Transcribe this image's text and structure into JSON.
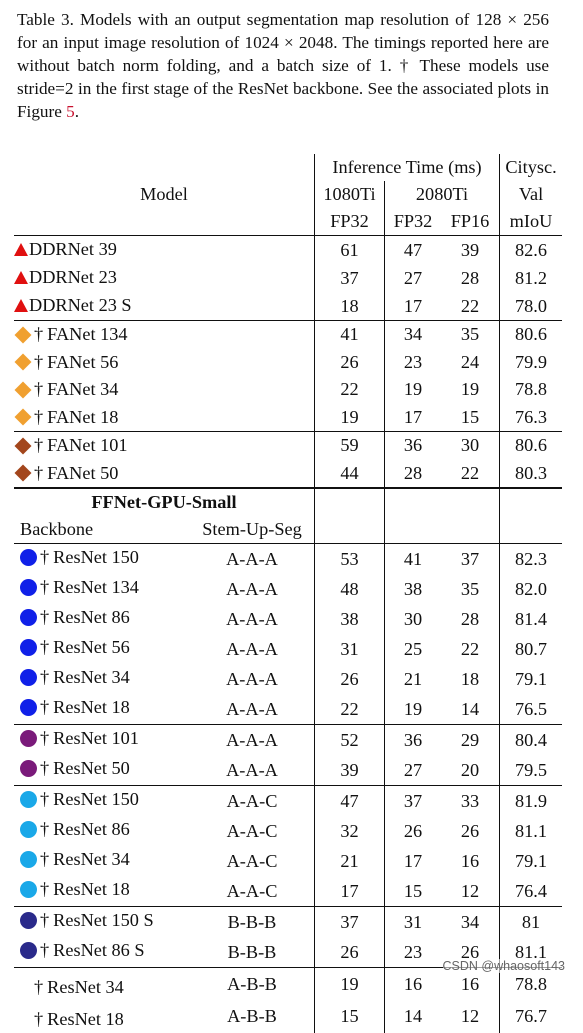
{
  "caption": {
    "text": "Table 3. Models with an output segmentation map resolution of 128 × 256 for an input image resolution of 1024 × 2048. The timings reported here are without batch norm folding, and a batch size of 1. † These models use stride=2 in the first stage of the ResNet backbone. See the associated plots in Figure ",
    "figure_ref": "5",
    "end": "."
  },
  "header": {
    "model": "Model",
    "inference_time": "Inference Time (ms)",
    "citysc": "Citysc.",
    "val": "Val",
    "miou": "mIoU",
    "gpu_1080": "1080Ti",
    "gpu_2080": "2080Ti",
    "fp32_a": "FP32",
    "fp32_b": "FP32",
    "fp16": "FP16"
  },
  "colors": {
    "red_triangle": "#e01010",
    "orange_diamond": "#f0a030",
    "brown_diamond": "#a3461c",
    "blue_dot": "#1020e8",
    "purple_dot": "#7a1a7a",
    "cyan_dot": "#1aa8e8",
    "navy_dot": "#2a2a8a",
    "link": "#c8102e"
  },
  "groups": {
    "ddr": [
      {
        "name": "DDRNet 39",
        "t1080": "61",
        "t2080_32": "47",
        "t2080_16": "39",
        "miou": "82.6"
      },
      {
        "name": "DDRNet 23",
        "t1080": "37",
        "t2080_32": "27",
        "t2080_16": "28",
        "miou": "81.2"
      },
      {
        "name": "DDRNet 23 S",
        "t1080": "18",
        "t2080_32": "17",
        "t2080_16": "22",
        "miou": "78.0"
      }
    ],
    "fa_orange": [
      {
        "name": "FANet 134",
        "t1080": "41",
        "t2080_32": "34",
        "t2080_16": "35",
        "miou": "80.6"
      },
      {
        "name": "FANet 56",
        "t1080": "26",
        "t2080_32": "23",
        "t2080_16": "24",
        "miou": "79.9"
      },
      {
        "name": "FANet 34",
        "t1080": "22",
        "t2080_32": "19",
        "t2080_16": "19",
        "miou": "78.8"
      },
      {
        "name": "FANet 18",
        "t1080": "19",
        "t2080_32": "17",
        "t2080_16": "15",
        "miou": "76.3"
      }
    ],
    "fa_brown": [
      {
        "name": "FANet 101",
        "t1080": "59",
        "t2080_32": "36",
        "t2080_16": "30",
        "miou": "80.6"
      },
      {
        "name": "FANet 50",
        "t1080": "44",
        "t2080_32": "28",
        "t2080_16": "22",
        "miou": "80.3"
      }
    ],
    "ff_title": "FFNet-GPU-Small",
    "backbone_label": "Backbone",
    "stem_label": "Stem-Up-Seg",
    "ff_blue": [
      {
        "name": "ResNet 150",
        "stem": "A-A-A",
        "t1080": "53",
        "t2080_32": "41",
        "t2080_16": "37",
        "miou": "82.3"
      },
      {
        "name": "ResNet 134",
        "stem": "A-A-A",
        "t1080": "48",
        "t2080_32": "38",
        "t2080_16": "35",
        "miou": "82.0"
      },
      {
        "name": "ResNet 86",
        "stem": "A-A-A",
        "t1080": "38",
        "t2080_32": "30",
        "t2080_16": "28",
        "miou": "81.4"
      },
      {
        "name": "ResNet 56",
        "stem": "A-A-A",
        "t1080": "31",
        "t2080_32": "25",
        "t2080_16": "22",
        "miou": "80.7"
      },
      {
        "name": "ResNet 34",
        "stem": "A-A-A",
        "t1080": "26",
        "t2080_32": "21",
        "t2080_16": "18",
        "miou": "79.1"
      },
      {
        "name": "ResNet 18",
        "stem": "A-A-A",
        "t1080": "22",
        "t2080_32": "19",
        "t2080_16": "14",
        "miou": "76.5"
      }
    ],
    "ff_purple": [
      {
        "name": "ResNet 101",
        "stem": "A-A-A",
        "t1080": "52",
        "t2080_32": "36",
        "t2080_16": "29",
        "miou": "80.4"
      },
      {
        "name": "ResNet 50",
        "stem": "A-A-A",
        "t1080": "39",
        "t2080_32": "27",
        "t2080_16": "20",
        "miou": "79.5"
      }
    ],
    "ff_cyan": [
      {
        "name": "ResNet 150",
        "stem": "A-A-C",
        "t1080": "47",
        "t2080_32": "37",
        "t2080_16": "33",
        "miou": "81.9"
      },
      {
        "name": "ResNet 86",
        "stem": "A-A-C",
        "t1080": "32",
        "t2080_32": "26",
        "t2080_16": "26",
        "miou": "81.1"
      },
      {
        "name": "ResNet 34",
        "stem": "A-A-C",
        "t1080": "21",
        "t2080_32": "17",
        "t2080_16": "16",
        "miou": "79.1"
      },
      {
        "name": "ResNet 18",
        "stem": "A-A-C",
        "t1080": "17",
        "t2080_32": "15",
        "t2080_16": "12",
        "miou": "76.4"
      }
    ],
    "ff_navy": [
      {
        "name": "ResNet 150 S",
        "stem": "B-B-B",
        "t1080": "37",
        "t2080_32": "31",
        "t2080_16": "34",
        "miou": "81"
      },
      {
        "name": "ResNet 86 S",
        "stem": "B-B-B",
        "t1080": "26",
        "t2080_32": "23",
        "t2080_16": "26",
        "miou": "81.1"
      }
    ],
    "ff_plain": [
      {
        "name": "ResNet 34",
        "stem": "A-B-B",
        "t1080": "19",
        "t2080_32": "16",
        "t2080_16": "16",
        "miou": "78.8"
      },
      {
        "name": "ResNet 18",
        "stem": "A-B-B",
        "t1080": "15",
        "t2080_32": "14",
        "t2080_16": "12",
        "miou": "76.7"
      }
    ]
  },
  "dagger": "†",
  "watermark": "CSDN @whaosoft143"
}
